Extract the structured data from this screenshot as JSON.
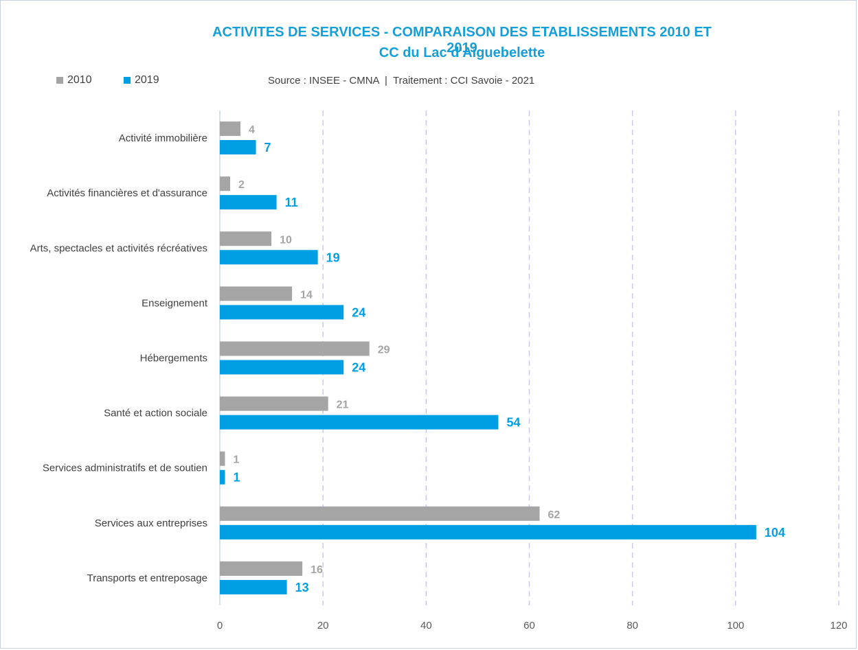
{
  "colors": {
    "2010": "#a5a5a5",
    "2019": "#009fe3",
    "title": "#159fd8",
    "grid": "#c9c9f0"
  },
  "source_text": "Source : INSEE - CMNA  |  Traitement : CCI Savoie - 2021",
  "chart_data": {
    "type": "bar",
    "orientation": "horizontal",
    "title": "ACTIVITES DE SERVICES - COMPARAISON DES ETABLISSEMENTS 2010 ET 2019",
    "subtitle": "CC du Lac d'Aiguebelette",
    "categories": [
      "Activité immobilière",
      "Activités financières et d'assurance",
      "Arts, spectacles et activités récréatives",
      "Enseignement",
      "Hébergements",
      "Santé et action sociale",
      "Services administratifs et de soutien",
      "Services aux entreprises",
      "Transports et entreposage"
    ],
    "series": [
      {
        "name": "2010",
        "values": [
          4,
          2,
          10,
          14,
          29,
          21,
          1,
          62,
          16
        ]
      },
      {
        "name": "2019",
        "values": [
          7,
          11,
          19,
          24,
          24,
          54,
          1,
          104,
          13
        ]
      }
    ],
    "xlim": [
      0,
      120
    ],
    "xticks": [
      0,
      20,
      40,
      60,
      80,
      100,
      120
    ],
    "grid": true,
    "legend": "top-left",
    "data_labels": true
  }
}
